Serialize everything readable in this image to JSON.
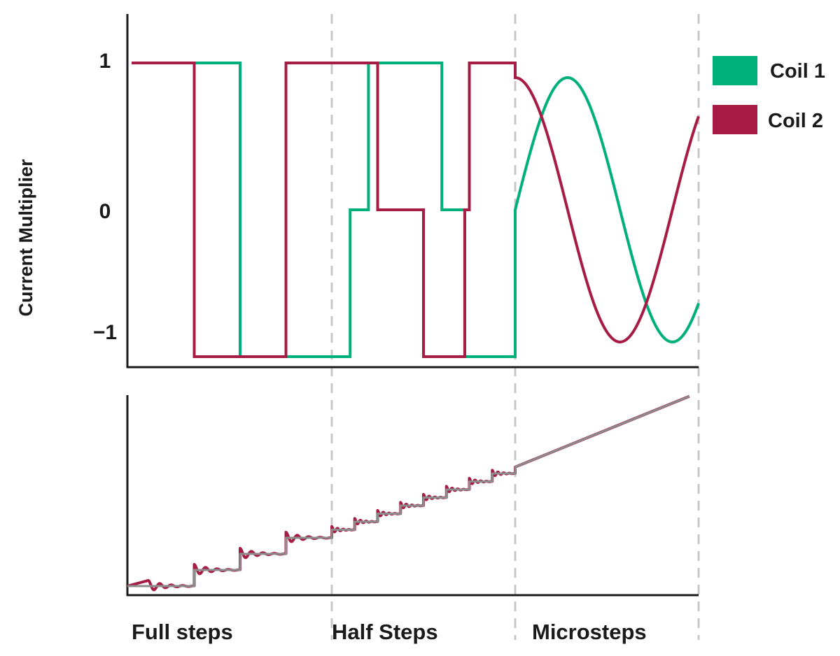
{
  "chart_data": [
    {
      "type": "line",
      "title": "",
      "ylabel": "Current Multiplier",
      "xlabel": "",
      "ylim": [
        -1.2,
        1.3
      ],
      "y_ticks": [
        "1",
        "0",
        "−1"
      ],
      "y_tick_values": [
        1,
        0,
        -1
      ],
      "xlim": [
        0,
        16
      ],
      "grid": false,
      "section_dividers": [
        4,
        8,
        12
      ],
      "legend": {
        "placement": "right",
        "entries": [
          "Coil 1",
          "Coil 2"
        ]
      },
      "series": [
        {
          "name": "Coil 1",
          "color": "#00b07a",
          "step_x": [
            0,
            1,
            2,
            3,
            4,
            4.4,
            4.8,
            5,
            6,
            6.4,
            6.9,
            7,
            8
          ],
          "step_y": [
            1,
            1,
            -1,
            -1,
            -1,
            0,
            1,
            1,
            1,
            0,
            -1,
            -1,
            -1
          ],
          "microstep": {
            "x_start": 8,
            "x_end": 12,
            "phase_start_deg": 0,
            "phase_end_deg": 315,
            "form": "sin"
          }
        },
        {
          "name": "Coil 2",
          "color": "#a61c44",
          "step_x": [
            0,
            1,
            2,
            3,
            4,
            4.4,
            4.8,
            5,
            6,
            6.4,
            6.9,
            7,
            8
          ],
          "step_y": [
            1,
            -1,
            -1,
            1,
            1,
            1,
            1,
            0,
            -1,
            -1,
            0,
            1,
            1
          ],
          "microstep": {
            "x_start": 8,
            "x_end": 12,
            "phase_start_deg": 0,
            "phase_end_deg": 315,
            "form": "cos"
          }
        }
      ]
    },
    {
      "type": "line",
      "title": "",
      "xlabel": "",
      "ylabel": "",
      "grid": false,
      "section_labels": [
        "Full steps",
        "Half Steps",
        "Microsteps"
      ],
      "series": [
        {
          "name": "",
          "color": "#a61c44",
          "form": "staircase with ringing overshoot",
          "steps": [
            {
              "x_start": 0,
              "x_end": 1,
              "level": 0,
              "overshoot": 0.35
            },
            {
              "x_start": 1,
              "x_end": 2,
              "level": 1,
              "overshoot": 0.35
            },
            {
              "x_start": 2,
              "x_end": 3,
              "level": 2,
              "overshoot": 0.35
            },
            {
              "x_start": 3,
              "x_end": 4,
              "level": 3,
              "overshoot": 0.35
            },
            {
              "x_start": 4,
              "x_end": 4.5,
              "level": 3.5,
              "overshoot": 0.2
            },
            {
              "x_start": 4.5,
              "x_end": 5,
              "level": 4,
              "overshoot": 0.2
            },
            {
              "x_start": 5,
              "x_end": 5.5,
              "level": 4.5,
              "overshoot": 0.2
            },
            {
              "x_start": 5.5,
              "x_end": 6,
              "level": 5,
              "overshoot": 0.2
            },
            {
              "x_start": 6,
              "x_end": 6.5,
              "level": 5.5,
              "overshoot": 0.2
            },
            {
              "x_start": 6.5,
              "x_end": 7,
              "level": 6,
              "overshoot": 0.2
            },
            {
              "x_start": 7,
              "x_end": 7.5,
              "level": 6.5,
              "overshoot": 0.2
            },
            {
              "x_start": 7.5,
              "x_end": 8,
              "level": 7,
              "overshoot": 0.2
            }
          ],
          "linear": {
            "x_start": 8,
            "x_end": 11.8,
            "y_start": 7.4,
            "y_end": 11.8
          }
        },
        {
          "name": "",
          "color": "#8c8c8c",
          "form": "ideal staircase",
          "steps": [
            {
              "x_start": 0,
              "x_end": 1,
              "level": 0
            },
            {
              "x_start": 1,
              "x_end": 2,
              "level": 1
            },
            {
              "x_start": 2,
              "x_end": 3,
              "level": 2
            },
            {
              "x_start": 3,
              "x_end": 4,
              "level": 3
            },
            {
              "x_start": 4,
              "x_end": 4.5,
              "level": 3.5
            },
            {
              "x_start": 4.5,
              "x_end": 5,
              "level": 4
            },
            {
              "x_start": 5,
              "x_end": 5.5,
              "level": 4.5
            },
            {
              "x_start": 5.5,
              "x_end": 6,
              "level": 5
            },
            {
              "x_start": 6,
              "x_end": 6.5,
              "level": 5.5
            },
            {
              "x_start": 6.5,
              "x_end": 7,
              "level": 6
            },
            {
              "x_start": 7,
              "x_end": 7.5,
              "level": 6.5
            },
            {
              "x_start": 7.5,
              "x_end": 8,
              "level": 7
            }
          ],
          "linear": {
            "x_start": 8,
            "x_end": 11.8,
            "y_start": 7.4,
            "y_end": 11.8
          }
        }
      ]
    }
  ]
}
